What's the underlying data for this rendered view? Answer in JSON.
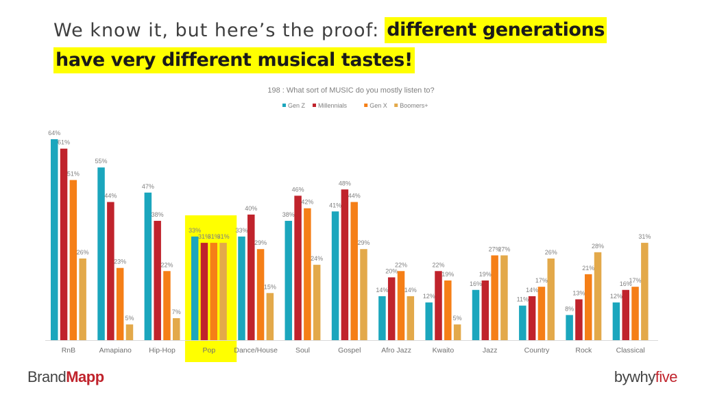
{
  "headline": {
    "lead": "We know it, but here’s the proof:",
    "highlight_line1": "different generations",
    "highlight_line2": "have very different musical tastes!"
  },
  "branding": {
    "left_main": "Brand",
    "left_accent": "Mapp",
    "right_main": "bywhy",
    "right_accent": "five"
  },
  "colors": {
    "highlight": "#ffff00",
    "label": "#7f7f7f",
    "axis": "#d9d9d9"
  },
  "chart_data": {
    "type": "bar",
    "title": "198 : What sort of MUSIC  do you mostly listen to?",
    "legend_position": "top",
    "grid": false,
    "ylim": [
      0,
      70
    ],
    "highlighted_category": "Pop",
    "categories": [
      "RnB",
      "Amapiano",
      "Hip-Hop",
      "Pop",
      "Dance/House",
      "Soul",
      "Gospel",
      "Afro Jazz",
      "Kwaito",
      "Jazz",
      "Country",
      "Rock",
      "Classical"
    ],
    "series": [
      {
        "name": "Gen Z",
        "color": "#1ba6bd",
        "values": [
          64,
          55,
          47,
          33,
          33,
          38,
          41,
          14,
          12,
          16,
          11,
          8,
          12
        ]
      },
      {
        "name": "Millennials",
        "color": "#c0232c",
        "values": [
          61,
          44,
          38,
          31,
          40,
          46,
          48,
          20,
          22,
          19,
          14,
          13,
          16
        ]
      },
      {
        "name": "Gen X",
        "color": "#f57f17",
        "values": [
          51,
          23,
          22,
          31,
          29,
          42,
          44,
          22,
          19,
          27,
          17,
          21,
          17
        ]
      },
      {
        "name": "Boomers+",
        "color": "#e3a94a",
        "values": [
          26,
          5,
          7,
          31,
          15,
          24,
          29,
          14,
          5,
          27,
          26,
          28,
          31
        ]
      }
    ]
  }
}
